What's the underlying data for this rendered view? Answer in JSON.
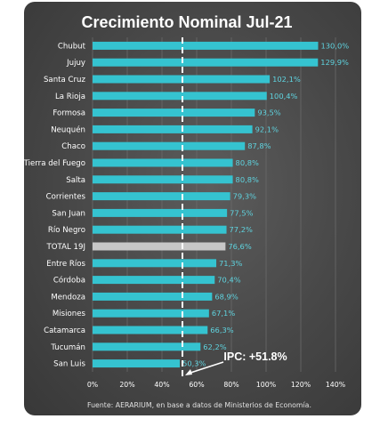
{
  "chart_data": {
    "type": "bar",
    "orientation": "horizontal",
    "title": "Crecimiento Nominal Jul-21",
    "categories": [
      "Chubut",
      "Jujuy",
      "Santa Cruz",
      "La Rioja",
      "Formosa",
      "Neuquén",
      "Chaco",
      "Tierra del Fuego",
      "Salta",
      "Corrientes",
      "San Juan",
      "Río Negro",
      "TOTAL 19J",
      "Entre Ríos",
      "Córdoba",
      "Mendoza",
      "Misiones",
      "Catamarca",
      "Tucumán",
      "San Luis"
    ],
    "values": [
      130.0,
      129.9,
      102.1,
      100.4,
      93.5,
      92.1,
      87.8,
      80.8,
      80.8,
      79.3,
      77.5,
      77.2,
      76.6,
      71.3,
      70.4,
      68.9,
      67.1,
      66.3,
      62.2,
      50.3
    ],
    "value_labels": [
      "130,0%",
      "129,9%",
      "102,1%",
      "100,4%",
      "93,5%",
      "92,1%",
      "87,8%",
      "80,8%",
      "80,8%",
      "79,3%",
      "77,5%",
      "77,2%",
      "76,6%",
      "71,3%",
      "70,4%",
      "68,9%",
      "67,1%",
      "66,3%",
      "62,2%",
      "50,3%"
    ],
    "highlighted_category": "TOTAL 19J",
    "xlim": [
      0,
      140
    ],
    "x_ticks": [
      "0%",
      "20%",
      "40%",
      "60%",
      "80%",
      "100%",
      "120%",
      "140%"
    ],
    "x_tick_values": [
      0,
      20,
      40,
      60,
      80,
      100,
      120,
      140
    ],
    "grid": true,
    "reference_line": {
      "value": 51.8,
      "label": "IPC: +51.8%"
    },
    "colors": {
      "bar": "#35c3d0",
      "highlight_bar": "#c7c7c7",
      "value_label": "#5fd4e0",
      "background": "#4a4a4a"
    }
  },
  "footer": {
    "source": "Fuente: AERARIUM, en base a datos de Ministerios de Economía."
  }
}
